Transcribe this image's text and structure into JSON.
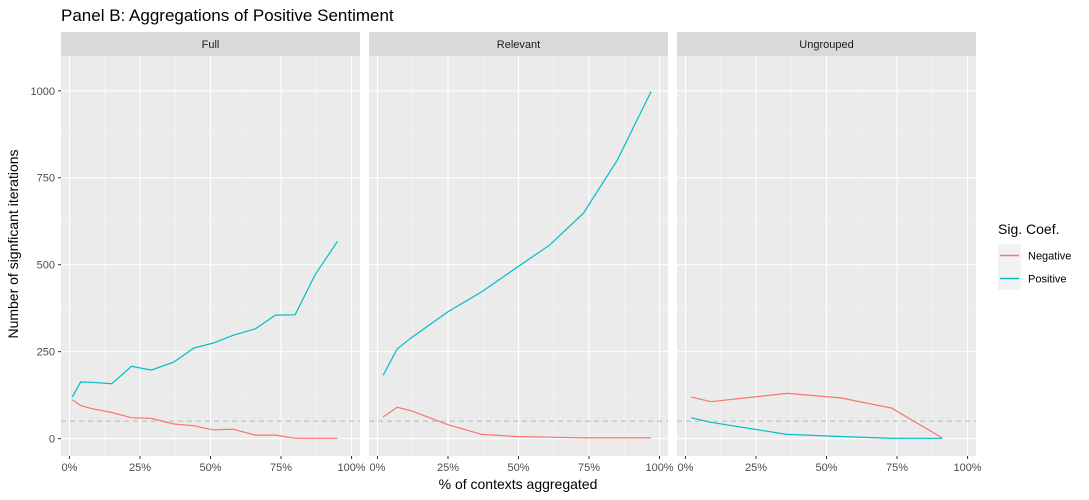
{
  "title": "Panel B: Aggregations of Positive Sentiment",
  "colors": {
    "Negative": "#F8766D",
    "Positive": "#00BFC4",
    "panel_bg": "#EBEBEB",
    "strip_bg": "#D9D9D9",
    "threshold": "#BDBDBD"
  },
  "chart_data": {
    "type": "line",
    "xlabel": "% of contexts aggregated",
    "ylabel": "Number of signficant iterations",
    "xlim": [
      -0.03,
      1.03
    ],
    "ylim": [
      -50,
      1100
    ],
    "x_ticks": [
      0,
      0.25,
      0.5,
      0.75,
      1
    ],
    "x_tick_labels": [
      "0%",
      "25%",
      "50%",
      "75%",
      "100%"
    ],
    "y_ticks": [
      0,
      250,
      500,
      750,
      1000
    ],
    "y_tick_labels": [
      "0",
      "250",
      "500",
      "750",
      "1000"
    ],
    "threshold": 50,
    "legend": {
      "title": "Sig. Coef.",
      "entries": [
        "Negative",
        "Positive"
      ],
      "position": "right"
    },
    "panels": [
      {
        "name": "Full",
        "series": [
          {
            "name": "Positive",
            "x": [
              0.01,
              0.04,
              0.08,
              0.15,
              0.22,
              0.29,
              0.37,
              0.44,
              0.51,
              0.58,
              0.66,
              0.73,
              0.8,
              0.87,
              0.95
            ],
            "y": [
              120,
              163,
              162,
              158,
              208,
              197,
              220,
              260,
              275,
              297,
              316,
              355,
              356,
              470,
              567
            ]
          },
          {
            "name": "Negative",
            "x": [
              0.01,
              0.04,
              0.08,
              0.15,
              0.22,
              0.29,
              0.37,
              0.44,
              0.51,
              0.58,
              0.66,
              0.73,
              0.8,
              0.87,
              0.95
            ],
            "y": [
              112,
              95,
              86,
              75,
              60,
              58,
              42,
              37,
              25,
              27,
              10,
              10,
              1,
              1,
              1
            ]
          }
        ]
      },
      {
        "name": "Relevant",
        "series": [
          {
            "name": "Positive",
            "x": [
              0.02,
              0.07,
              0.12,
              0.25,
              0.37,
              0.49,
              0.61,
              0.73,
              0.85,
              0.97
            ],
            "y": [
              182,
              258,
              290,
              365,
              422,
              490,
              556,
              648,
              800,
              998
            ]
          },
          {
            "name": "Negative",
            "x": [
              0.02,
              0.07,
              0.12,
              0.25,
              0.37,
              0.49,
              0.61,
              0.73,
              0.85,
              0.97
            ],
            "y": [
              62,
              90,
              80,
              40,
              12,
              6,
              4,
              2,
              2,
              2
            ]
          }
        ]
      },
      {
        "name": "Ungrouped",
        "series": [
          {
            "name": "Negative",
            "x": [
              0.02,
              0.09,
              0.36,
              0.55,
              0.73,
              0.91
            ],
            "y": [
              120,
              106,
              130,
              117,
              88,
              2
            ]
          },
          {
            "name": "Positive",
            "x": [
              0.02,
              0.09,
              0.36,
              0.55,
              0.73,
              0.91
            ],
            "y": [
              60,
              47,
              12,
              6,
              1,
              1
            ]
          }
        ]
      }
    ]
  }
}
